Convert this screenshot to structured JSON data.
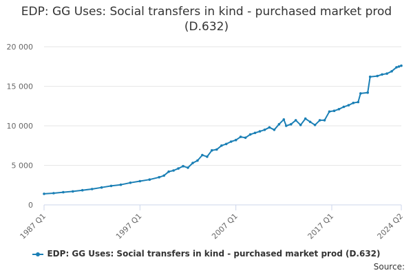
{
  "chart_data": {
    "type": "line",
    "title": "EDP: GG Uses: Social transfers in kind - purchased market prod (D.632)",
    "xlabel": "",
    "ylabel": "",
    "x_ticks": [
      "1987 Q1",
      "1997 Q1",
      "2007 Q1",
      "2017 Q1",
      "2024 Q2"
    ],
    "y_ticks": [
      "0",
      "5 000",
      "10 000",
      "15 000",
      "20 000"
    ],
    "ylim": [
      0,
      20000
    ],
    "grid": true,
    "legend_position": "bottom",
    "color": "#1a7fb5",
    "series": [
      {
        "name": "EDP: GG Uses: Social transfers in kind - purchased market prod (D.632)",
        "points": [
          [
            "1987 Q1",
            1400
          ],
          [
            "1988 Q1",
            1480
          ],
          [
            "1989 Q1",
            1600
          ],
          [
            "1990 Q1",
            1700
          ],
          [
            "1991 Q1",
            1850
          ],
          [
            "1992 Q1",
            2000
          ],
          [
            "1993 Q1",
            2200
          ],
          [
            "1994 Q1",
            2400
          ],
          [
            "1995 Q1",
            2550
          ],
          [
            "1996 Q1",
            2800
          ],
          [
            "1997 Q1",
            3000
          ],
          [
            "1998 Q1",
            3200
          ],
          [
            "1999 Q1",
            3500
          ],
          [
            "1999 Q3",
            3700
          ],
          [
            "2000 Q1",
            4200
          ],
          [
            "2000 Q3",
            4350
          ],
          [
            "2001 Q1",
            4600
          ],
          [
            "2001 Q3",
            4900
          ],
          [
            "2002 Q1",
            4700
          ],
          [
            "2002 Q3",
            5300
          ],
          [
            "2003 Q1",
            5600
          ],
          [
            "2003 Q3",
            6300
          ],
          [
            "2004 Q1",
            6100
          ],
          [
            "2004 Q3",
            6900
          ],
          [
            "2005 Q1",
            7000
          ],
          [
            "2005 Q3",
            7500
          ],
          [
            "2006 Q1",
            7700
          ],
          [
            "2006 Q3",
            8000
          ],
          [
            "2007 Q1",
            8200
          ],
          [
            "2007 Q3",
            8600
          ],
          [
            "2008 Q1",
            8500
          ],
          [
            "2008 Q3",
            8900
          ],
          [
            "2009 Q1",
            9100
          ],
          [
            "2009 Q3",
            9300
          ],
          [
            "2010 Q1",
            9500
          ],
          [
            "2010 Q3",
            9800
          ],
          [
            "2011 Q1",
            9500
          ],
          [
            "2011 Q3",
            10200
          ],
          [
            "2012 Q1",
            10800
          ],
          [
            "2012 Q2",
            10000
          ],
          [
            "2012 Q4",
            10200
          ],
          [
            "2013 Q2",
            10700
          ],
          [
            "2013 Q4",
            10100
          ],
          [
            "2014 Q2",
            10900
          ],
          [
            "2014 Q4",
            10500
          ],
          [
            "2015 Q2",
            10100
          ],
          [
            "2015 Q4",
            10700
          ],
          [
            "2016 Q2",
            10700
          ],
          [
            "2016 Q4",
            11800
          ],
          [
            "2017 Q2",
            11900
          ],
          [
            "2017 Q4",
            12100
          ],
          [
            "2018 Q2",
            12400
          ],
          [
            "2018 Q4",
            12600
          ],
          [
            "2019 Q2",
            12900
          ],
          [
            "2019 Q4",
            13000
          ],
          [
            "2020 Q1",
            14100
          ],
          [
            "2020 Q4",
            14200
          ],
          [
            "2021 Q1",
            16200
          ],
          [
            "2021 Q4",
            16300
          ],
          [
            "2022 Q2",
            16500
          ],
          [
            "2022 Q4",
            16600
          ],
          [
            "2023 Q2",
            16900
          ],
          [
            "2023 Q4",
            17400
          ],
          [
            "2024 Q1",
            17500
          ],
          [
            "2024 Q2",
            17600
          ]
        ]
      }
    ]
  },
  "source_label": "Source:"
}
